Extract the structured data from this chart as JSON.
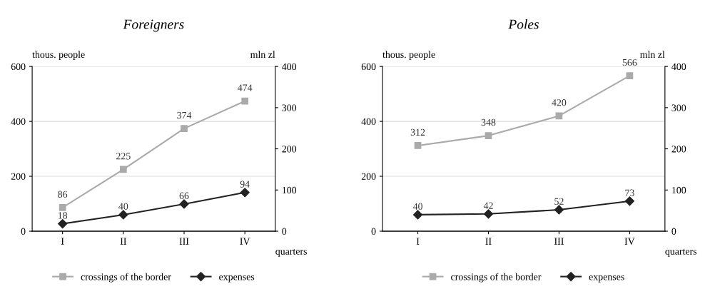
{
  "chart_data": [
    {
      "type": "line",
      "title": "Foreigners",
      "categories": [
        "I",
        "II",
        "III",
        "IV"
      ],
      "xlabel": "quarters",
      "ylabel": "thous. people",
      "y2label": "mln zl",
      "ylim": [
        0,
        600
      ],
      "yticks": [
        0,
        200,
        400,
        600
      ],
      "y2lim": [
        0,
        400
      ],
      "y2ticks": [
        0,
        100,
        200,
        300,
        400
      ],
      "grid": "y",
      "legend": "bottom",
      "data_labels": true,
      "series": [
        {
          "name": "crossings of the border",
          "color": "#aaaaaa",
          "marker": "square",
          "values": [
            86,
            225,
            374,
            474
          ]
        },
        {
          "name": "expenses",
          "color": "#222222",
          "marker": "diamond",
          "axis": "y2",
          "values": [
            18,
            40,
            66,
            94
          ]
        }
      ]
    },
    {
      "type": "line",
      "title": "Poles",
      "categories": [
        "I",
        "II",
        "III",
        "IV"
      ],
      "xlabel": "quarters",
      "ylabel": "thous. people",
      "y2label": "mln zl",
      "ylim": [
        0,
        600
      ],
      "yticks": [
        0,
        200,
        400,
        600
      ],
      "y2lim": [
        0,
        400
      ],
      "y2ticks": [
        0,
        100,
        200,
        300,
        400
      ],
      "grid": "y",
      "legend": "bottom",
      "data_labels": true,
      "series": [
        {
          "name": "crossings of the border",
          "color": "#aaaaaa",
          "marker": "square",
          "values": [
            312,
            348,
            420,
            566
          ]
        },
        {
          "name": "expenses",
          "color": "#222222",
          "marker": "diamond",
          "axis": "y2",
          "values": [
            40,
            42,
            52,
            73
          ]
        }
      ]
    }
  ]
}
